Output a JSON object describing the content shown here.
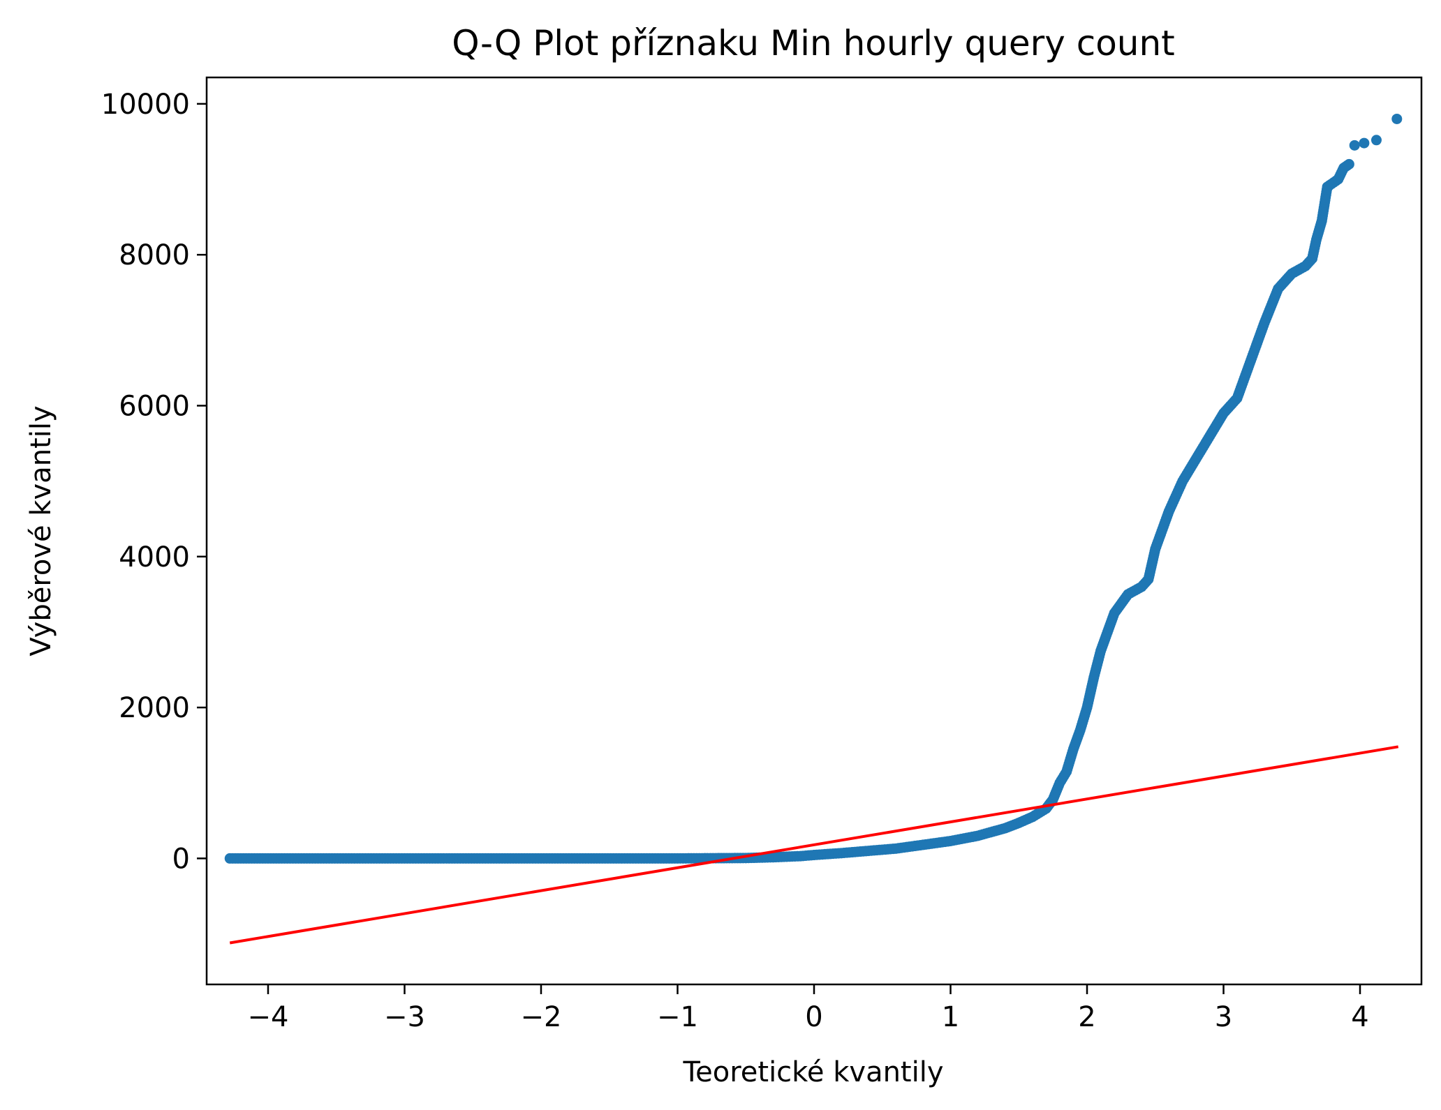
{
  "chart_data": {
    "type": "scatter",
    "title": "Q-Q Plot příznaku Min hourly query count",
    "xlabel": "Teoretické kvantily",
    "ylabel": "Výběrové kvantily",
    "xlim": [
      -4.45,
      4.45
    ],
    "ylim": [
      -1670,
      10350
    ],
    "xticks": [
      -4,
      -3,
      -2,
      -1,
      0,
      1,
      2,
      3,
      4
    ],
    "xtick_labels": [
      "−4",
      "−3",
      "−2",
      "−1",
      "0",
      "1",
      "2",
      "3",
      "4"
    ],
    "yticks": [
      0,
      2000,
      4000,
      6000,
      8000,
      10000
    ],
    "ytick_labels": [
      "0",
      "2000",
      "4000",
      "6000",
      "8000",
      "10000"
    ],
    "grid": false,
    "colors": {
      "points": "#1f77b4",
      "fit_line": "#ff0000"
    },
    "sample_quantiles_curve": [
      [
        -4.28,
        0
      ],
      [
        -4.12,
        0
      ],
      [
        -4.0,
        0
      ],
      [
        -3.9,
        0
      ],
      [
        -3.0,
        0
      ],
      [
        -2.0,
        0
      ],
      [
        -1.0,
        0
      ],
      [
        -0.5,
        5
      ],
      [
        -0.3,
        15
      ],
      [
        -0.1,
        30
      ],
      [
        0.0,
        45
      ],
      [
        0.2,
        70
      ],
      [
        0.4,
        100
      ],
      [
        0.6,
        130
      ],
      [
        0.8,
        180
      ],
      [
        1.0,
        230
      ],
      [
        1.2,
        300
      ],
      [
        1.4,
        400
      ],
      [
        1.5,
        470
      ],
      [
        1.6,
        550
      ],
      [
        1.7,
        660
      ],
      [
        1.75,
        780
      ],
      [
        1.8,
        1000
      ],
      [
        1.85,
        1150
      ],
      [
        1.9,
        1450
      ],
      [
        1.95,
        1700
      ],
      [
        2.0,
        2000
      ],
      [
        2.05,
        2400
      ],
      [
        2.1,
        2750
      ],
      [
        2.15,
        3000
      ],
      [
        2.2,
        3250
      ],
      [
        2.3,
        3500
      ],
      [
        2.4,
        3600
      ],
      [
        2.45,
        3700
      ],
      [
        2.5,
        4100
      ],
      [
        2.6,
        4600
      ],
      [
        2.7,
        5000
      ],
      [
        2.8,
        5300
      ],
      [
        2.9,
        5600
      ],
      [
        3.0,
        5900
      ],
      [
        3.1,
        6100
      ],
      [
        3.2,
        6600
      ],
      [
        3.3,
        7100
      ],
      [
        3.4,
        7550
      ],
      [
        3.5,
        7750
      ],
      [
        3.6,
        7850
      ],
      [
        3.65,
        7950
      ],
      [
        3.68,
        8200
      ],
      [
        3.72,
        8450
      ],
      [
        3.76,
        8900
      ],
      [
        3.84,
        9000
      ],
      [
        3.88,
        9150
      ],
      [
        3.92,
        9200
      ]
    ],
    "sample_quantiles_outliers": [
      [
        3.96,
        9450
      ],
      [
        4.03,
        9480
      ],
      [
        4.12,
        9520
      ],
      [
        4.27,
        9800
      ]
    ],
    "fit_line": {
      "x": [
        -4.28,
        4.28
      ],
      "y": [
        -1120,
        1480
      ]
    }
  }
}
